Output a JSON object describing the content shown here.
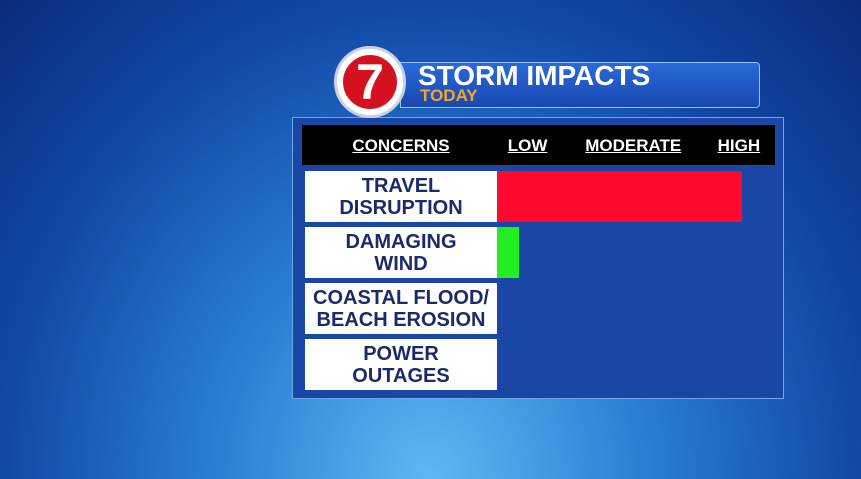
{
  "chart_data": {
    "type": "bar",
    "orientation": "horizontal",
    "logo": "7",
    "title": "STORM IMPACTS",
    "subtitle": "TODAY",
    "category_header": "CONCERNS",
    "categories": [
      "TRAVEL\nDISRUPTION",
      "DAMAGING\nWIND",
      "COASTAL FLOOD/\nBEACH EROSION",
      "POWER\nOUTAGES"
    ],
    "values": [
      88,
      8,
      0,
      0
    ],
    "colors": [
      "#ff0a2c",
      "#22ee22",
      "#22ee22",
      "#22ee22"
    ],
    "xlim": [
      0,
      100
    ],
    "xticks": [
      {
        "value": 11,
        "label": "LOW"
      },
      {
        "value": 49,
        "label": "MODERATE"
      },
      {
        "value": 87,
        "label": "HIGH"
      }
    ]
  }
}
